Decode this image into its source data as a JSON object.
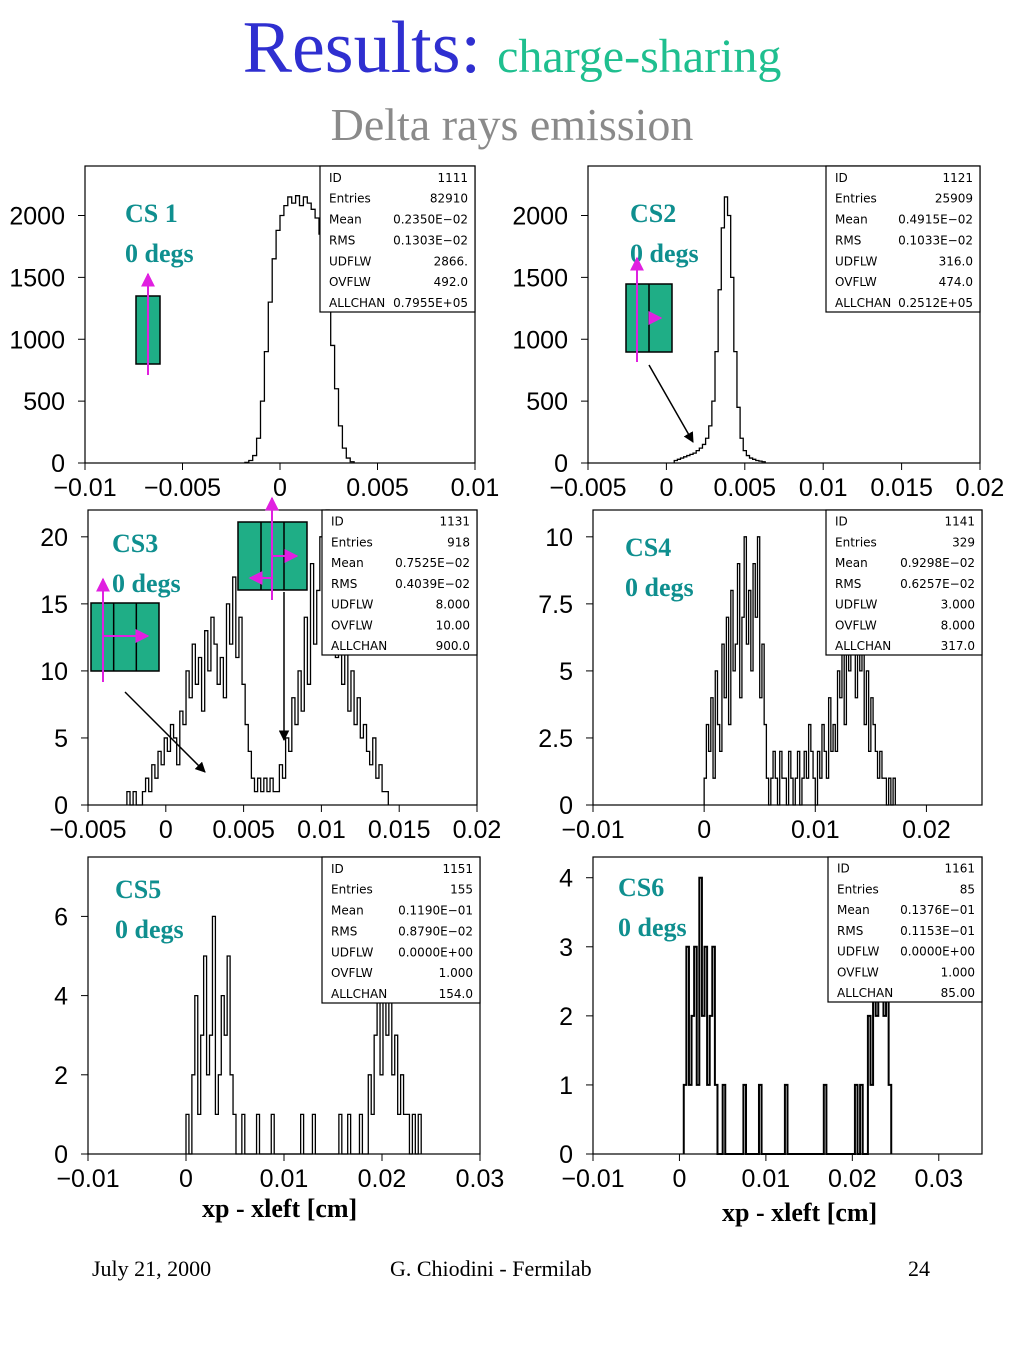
{
  "slide": {
    "title": "Results:",
    "title_sub": "charge-sharing",
    "subtitle": "Delta rays emission",
    "xlabel": "xp - xleft  [cm]",
    "footer_date": "July 21, 2000",
    "footer_author": "G. Chiodini - Fermilab",
    "footer_page": "24"
  },
  "colors": {
    "title": "#2f2fd0",
    "title_sub": "#1fbf8f",
    "subtitle": "#8a8a8a",
    "label": "#0f8f8f",
    "cell": "#1fae86",
    "arrow": "#e020e0"
  },
  "chart_data": [
    {
      "type": "histogram",
      "label": "CS 1",
      "angle": "0 degs",
      "xlim": [
        -0.01,
        0.01
      ],
      "ylim": [
        0,
        2400
      ],
      "xticks": [
        -0.01,
        -0.005,
        0,
        0.005,
        0.01
      ],
      "xtick_labels": [
        "−0.01",
        "−0.005",
        "0",
        "0.005",
        "0.01"
      ],
      "yticks": [
        0,
        500,
        1000,
        1500,
        2000
      ],
      "ytick_labels": [
        "0",
        "500",
        "1000",
        "1500",
        "2000"
      ],
      "stats": [
        [
          "ID",
          "1111"
        ],
        [
          "Entries",
          "82910"
        ],
        [
          "Mean",
          "0.2350E−02"
        ],
        [
          "RMS",
          "0.1303E−02"
        ],
        [
          "UDFLW",
          "2866."
        ],
        [
          "OVFLW",
          "492.0"
        ],
        [
          "ALLCHAN",
          "0.7955E+05"
        ]
      ],
      "bins": {
        "x0": -0.0018,
        "width": 0.0002,
        "values": [
          5,
          20,
          60,
          200,
          500,
          900,
          1300,
          1650,
          1880,
          2000,
          2080,
          2150,
          2100,
          2160,
          2080,
          2150,
          2100,
          2050,
          1980,
          1850,
          1650,
          1350,
          950,
          600,
          300,
          120,
          40,
          10
        ]
      }
    },
    {
      "type": "histogram",
      "label": "CS2",
      "angle": "0 degs",
      "xlim": [
        -0.005,
        0.02
      ],
      "ylim": [
        0,
        2400
      ],
      "xticks": [
        -0.005,
        0,
        0.005,
        0.01,
        0.015,
        0.02
      ],
      "xtick_labels": [
        "−0.005",
        "0",
        "0.005",
        "0.01",
        "0.015",
        "0.02"
      ],
      "yticks": [
        0,
        500,
        1000,
        1500,
        2000
      ],
      "ytick_labels": [
        "0",
        "500",
        "1000",
        "1500",
        "2000"
      ],
      "stats": [
        [
          "ID",
          "1121"
        ],
        [
          "Entries",
          "25909"
        ],
        [
          "Mean",
          "0.4915E−02"
        ],
        [
          "RMS",
          "0.1033E−02"
        ],
        [
          "UDFLW",
          "316.0"
        ],
        [
          "OVFLW",
          "474.0"
        ],
        [
          "ALLCHAN",
          "0.2512E+05"
        ]
      ],
      "bins": {
        "x0": 0.0005,
        "width": 0.0002,
        "values": [
          20,
          30,
          40,
          50,
          60,
          70,
          80,
          100,
          120,
          150,
          200,
          300,
          500,
          900,
          1400,
          1900,
          2150,
          2000,
          1500,
          900,
          450,
          200,
          100,
          60,
          40,
          30,
          20,
          15,
          10
        ]
      }
    },
    {
      "type": "histogram",
      "label": "CS3",
      "angle": "0 degs",
      "xlim": [
        -0.005,
        0.02
      ],
      "ylim": [
        0,
        22
      ],
      "xticks": [
        -0.005,
        0,
        0.005,
        0.01,
        0.015,
        0.02
      ],
      "xtick_labels": [
        "−0.005",
        "0",
        "0.005",
        "0.01",
        "0.015",
        "0.02"
      ],
      "yticks": [
        0,
        5,
        10,
        15,
        20
      ],
      "ytick_labels": [
        "0",
        "5",
        "10",
        "15",
        "20"
      ],
      "stats": [
        [
          "ID",
          "1131"
        ],
        [
          "Entries",
          "918"
        ],
        [
          "Mean",
          "0.7525E−02"
        ],
        [
          "RMS",
          "0.4039E−02"
        ],
        [
          "UDFLW",
          "8.000"
        ],
        [
          "OVFLW",
          "10.00"
        ],
        [
          "ALLCHAN",
          "900.0"
        ]
      ],
      "bins": {
        "x0": -0.0025,
        "width": 0.0002,
        "values": [
          1,
          0,
          1,
          0,
          0,
          1,
          2,
          1,
          3,
          2,
          4,
          3,
          5,
          4,
          6,
          5,
          3,
          7,
          6,
          10,
          8,
          12,
          9,
          11,
          7,
          13,
          10,
          14,
          12,
          9,
          11,
          8,
          15,
          12,
          17,
          11,
          14,
          9,
          6,
          4,
          2,
          1,
          2,
          1,
          2,
          1,
          2,
          1,
          1,
          3,
          2,
          5,
          4,
          8,
          6,
          10,
          7,
          14,
          9,
          18,
          12,
          16,
          20,
          15,
          22,
          13,
          17,
          11,
          14,
          9,
          12,
          7,
          10,
          6,
          8,
          5,
          6,
          4,
          3,
          5,
          2,
          3,
          1,
          1
        ]
      }
    },
    {
      "type": "histogram",
      "label": "CS4",
      "angle": "0 degs",
      "xlim": [
        -0.01,
        0.025
      ],
      "ylim": [
        0,
        11
      ],
      "xticks": [
        -0.01,
        0,
        0.01,
        0.02
      ],
      "xtick_labels": [
        "−0.01",
        "0",
        "0.01",
        "0.02"
      ],
      "yticks": [
        0,
        2.5,
        5,
        7.5,
        10
      ],
      "ytick_labels": [
        "0",
        "2.5",
        "5",
        "7.5",
        "10"
      ],
      "stats": [
        [
          "ID",
          "1141"
        ],
        [
          "Entries",
          "329"
        ],
        [
          "Mean",
          "0.9298E−02"
        ],
        [
          "RMS",
          "0.6257E−02"
        ],
        [
          "UDFLW",
          "3.000"
        ],
        [
          "OVFLW",
          "8.000"
        ],
        [
          "ALLCHAN",
          "317.0"
        ]
      ],
      "bins": {
        "x0": 0,
        "width": 0.0002,
        "values": [
          1,
          3,
          2,
          4,
          1,
          5,
          3,
          2,
          6,
          4,
          7,
          3,
          8,
          5,
          6,
          9,
          4,
          7,
          10,
          6,
          8,
          5,
          9,
          7,
          10,
          4,
          6,
          3,
          1,
          0,
          1,
          2,
          1,
          0,
          2,
          1,
          1,
          0,
          2,
          1,
          0,
          1,
          2,
          0,
          1,
          2,
          1,
          3,
          2,
          1,
          0,
          2,
          1,
          3,
          2,
          1,
          4,
          2,
          3,
          2,
          5,
          4,
          6,
          3,
          7,
          5,
          8,
          6,
          4,
          7,
          5,
          6,
          3,
          5,
          2,
          4,
          3,
          2,
          1,
          2,
          1,
          1,
          0,
          1,
          0,
          1
        ]
      }
    },
    {
      "type": "histogram",
      "label": "CS5",
      "angle": "0 degs",
      "xlim": [
        -0.01,
        0.03
      ],
      "ylim": [
        0,
        7.5
      ],
      "xticks": [
        -0.01,
        0,
        0.01,
        0.02,
        0.03
      ],
      "xtick_labels": [
        "−0.01",
        "0",
        "0.01",
        "0.02",
        "0.03"
      ],
      "yticks": [
        0,
        2,
        4,
        6
      ],
      "ytick_labels": [
        "0",
        "2",
        "4",
        "6"
      ],
      "stats": [
        [
          "ID",
          "1151"
        ],
        [
          "Entries",
          "155"
        ],
        [
          "Mean",
          "0.1190E−01"
        ],
        [
          "RMS",
          "0.8790E−02"
        ],
        [
          "UDFLW",
          "0.0000E+00"
        ],
        [
          "OVFLW",
          "1.000"
        ],
        [
          "ALLCHAN",
          "154.0"
        ]
      ],
      "bins": {
        "x0": 0,
        "width": 0.0003,
        "values": [
          1,
          0,
          2,
          4,
          1,
          3,
          5,
          2,
          3,
          6,
          1,
          2,
          4,
          3,
          5,
          2,
          1,
          0,
          0,
          1,
          0,
          0,
          0,
          0,
          1,
          0,
          0,
          0,
          0,
          1,
          0,
          0,
          0,
          0,
          0,
          0,
          0,
          0,
          0,
          1,
          0,
          0,
          0,
          1,
          0,
          0,
          0,
          0,
          0,
          0,
          0,
          0,
          1,
          0,
          0,
          1,
          0,
          0,
          0,
          1,
          0,
          0,
          2,
          1,
          3,
          4,
          2,
          5,
          3,
          4,
          2,
          3,
          1,
          2,
          1,
          1,
          0,
          1,
          0,
          1
        ]
      }
    },
    {
      "type": "histogram",
      "label": "CS6",
      "angle": "0 degs",
      "xlim": [
        -0.01,
        0.035
      ],
      "ylim": [
        0,
        4.3
      ],
      "xticks": [
        -0.01,
        0,
        0.01,
        0.02,
        0.03
      ],
      "xtick_labels": [
        "−0.01",
        "0",
        "0.01",
        "0.02",
        "0.03"
      ],
      "yticks": [
        0,
        1,
        2,
        3,
        4
      ],
      "ytick_labels": [
        "0",
        "1",
        "2",
        "3",
        "4"
      ],
      "stats": [
        [
          "ID",
          "1161"
        ],
        [
          "Entries",
          "85"
        ],
        [
          "Mean",
          "0.1376E−01"
        ],
        [
          "RMS",
          "0.1153E−01"
        ],
        [
          "UDFLW",
          "0.0000E+00"
        ],
        [
          "OVFLW",
          "1.000"
        ],
        [
          "ALLCHAN",
          "85.00"
        ]
      ],
      "bins": {
        "x0": 0.0005,
        "width": 0.0003,
        "values": [
          1,
          3,
          1,
          2,
          3,
          1,
          4,
          2,
          3,
          1,
          2,
          3,
          1,
          0,
          0,
          1,
          0,
          0,
          0,
          0,
          0,
          0,
          0,
          1,
          0,
          0,
          0,
          0,
          0,
          1,
          0,
          0,
          0,
          0,
          0,
          0,
          0,
          0,
          0,
          1,
          0,
          0,
          0,
          0,
          0,
          0,
          0,
          0,
          0,
          0,
          0,
          0,
          0,
          0,
          1,
          0,
          0,
          0,
          0,
          0,
          0,
          0,
          0,
          0,
          0,
          0,
          1,
          0,
          1,
          0,
          0,
          2,
          1,
          3,
          2,
          3,
          4,
          2,
          3,
          1
        ]
      }
    }
  ]
}
